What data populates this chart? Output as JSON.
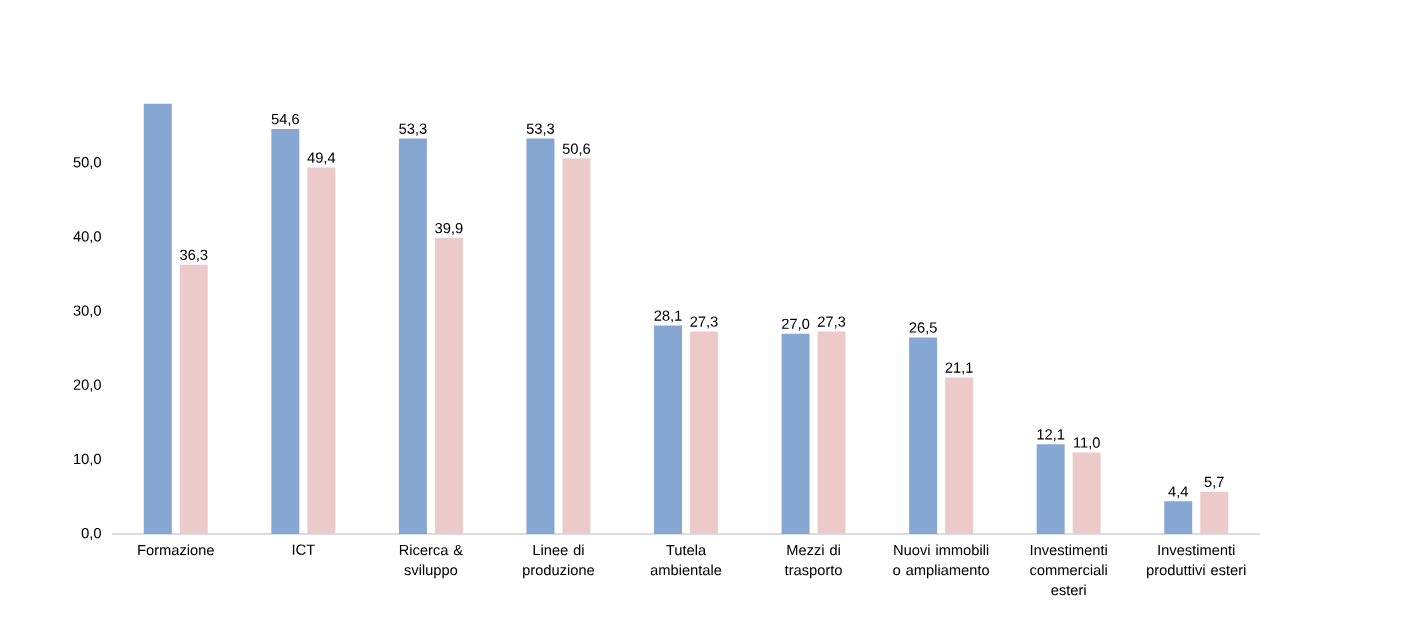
{
  "chart_data": {
    "type": "bar",
    "categories": [
      "Formazione",
      "ICT",
      "Ricerca & sviluppo",
      "Linee di produzione",
      "Tutela ambientale",
      "Mezzi di trasporto",
      "Nuovi immobili o ampliamento",
      "Investimenti commerciali esteri",
      "Investimenti produttivi esteri"
    ],
    "series": [
      {
        "color": "#86a7d2",
        "values": [
          58.0,
          54.6,
          53.3,
          53.3,
          28.1,
          27.0,
          26.5,
          12.1,
          4.4
        ],
        "value_labels": [
          null,
          "54,6",
          "53,3",
          "53,3",
          "28,1",
          "27,0",
          "26,5",
          "12,1",
          "4,4"
        ]
      },
      {
        "color": "#eccaca",
        "values": [
          36.3,
          49.4,
          39.9,
          50.6,
          27.3,
          27.3,
          21.1,
          11.0,
          5.7
        ],
        "value_labels": [
          "36,3",
          "49,4",
          "39,9",
          "50,6",
          "27,3",
          "27,3",
          "21,1",
          "11,0",
          "5,7"
        ]
      }
    ],
    "ylim": [
      0,
      58.5
    ],
    "yticks": [
      {
        "value": 0,
        "label": "0,0"
      },
      {
        "value": 10,
        "label": "10,0"
      },
      {
        "value": 20,
        "label": "20,0"
      },
      {
        "value": 30,
        "label": "30,0"
      },
      {
        "value": 40,
        "label": "40,0"
      },
      {
        "value": 50,
        "label": "50,0"
      }
    ],
    "grid": false
  }
}
